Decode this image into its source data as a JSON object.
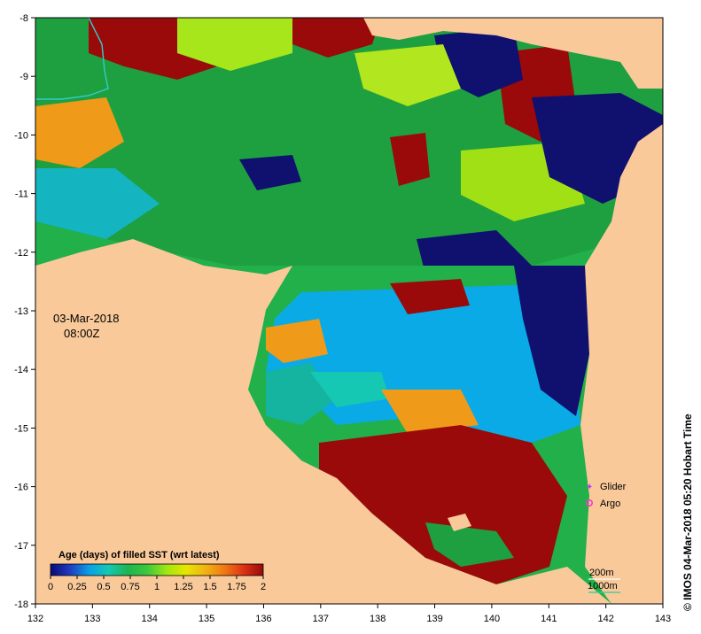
{
  "map": {
    "date_label": "03-Mar-2018",
    "time_label": "08:00Z",
    "credit": "© IMOS 04-Mar-2018 05:20 Hobart Time",
    "x_ticks": [
      "132",
      "133",
      "134",
      "135",
      "136",
      "137",
      "138",
      "139",
      "140",
      "141",
      "142",
      "143"
    ],
    "y_ticks": [
      "-8",
      "-9",
      "-10",
      "-11",
      "-12",
      "-13",
      "-14",
      "-15",
      "-16",
      "-17",
      "-18"
    ],
    "lon_range": [
      132,
      143
    ],
    "lat_range": [
      -18,
      -8
    ],
    "colors": {
      "land": "#f9c99a",
      "river": "#33cccc",
      "glider": "#cc33ff",
      "argo": "#ff33cc",
      "contour_200m": "#ffffff",
      "contour_1000m": "#33cc99"
    }
  },
  "colorbar": {
    "title": "Age (days) of filled SST (wrt latest)",
    "tick_labels": [
      "0",
      "0.25",
      "0.5",
      "0.75",
      "1",
      "1.25",
      "1.5",
      "1.75",
      "2"
    ],
    "range": [
      0,
      2
    ],
    "stops": [
      "#0a0a78",
      "#1e3cbe",
      "#0aa0e6",
      "#14c8b4",
      "#1eb450",
      "#3cc83c",
      "#a0e614",
      "#e6e600",
      "#f0b414",
      "#f07814",
      "#dc3214",
      "#960a0a"
    ]
  },
  "legend": {
    "glider": "Glider",
    "argo": "Argo",
    "contour_200": "200m",
    "contour_1000": "1000m"
  }
}
